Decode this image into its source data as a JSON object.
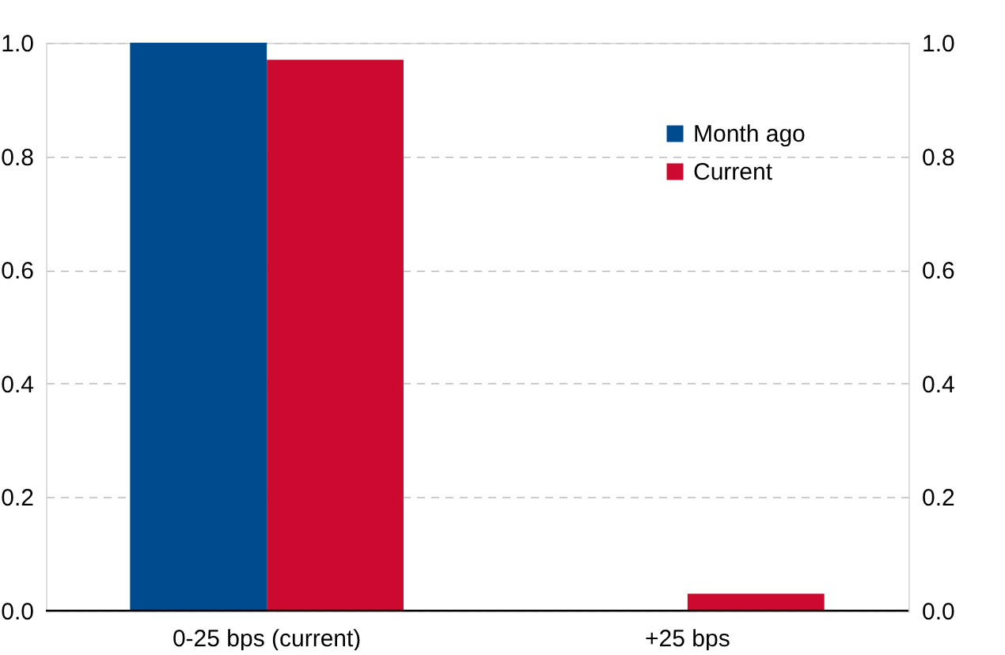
{
  "chart_data": {
    "type": "bar",
    "categories": [
      "0-25 bps (current)",
      "+25 bps"
    ],
    "series": [
      {
        "name": "Month ago",
        "color": "#004b8d",
        "values": [
          1.0,
          0.0
        ]
      },
      {
        "name": "Current",
        "color": "#cc0a2f",
        "values": [
          0.97,
          0.03
        ]
      }
    ],
    "ylim": [
      0,
      1.0
    ],
    "yticks": [
      {
        "value": 0,
        "label": "0.0"
      },
      {
        "value": 0.2,
        "label": "0.2"
      },
      {
        "value": 0.4,
        "label": "0.4"
      },
      {
        "value": 0.6,
        "label": "0.6"
      },
      {
        "value": 0.8,
        "label": "0.8"
      },
      {
        "value": 1.0,
        "label": "1.0"
      }
    ],
    "y2lim": [
      0,
      1.0
    ],
    "y2ticks": [
      {
        "value": 0,
        "label": "0.0"
      },
      {
        "value": 0.2,
        "label": "0.2"
      },
      {
        "value": 0.4,
        "label": "0.4"
      },
      {
        "value": 0.6,
        "label": "0.6"
      },
      {
        "value": 0.8,
        "label": "0.8"
      },
      {
        "value": 1.0,
        "label": "1.0"
      }
    ],
    "grid": "y",
    "legend": "top right"
  }
}
